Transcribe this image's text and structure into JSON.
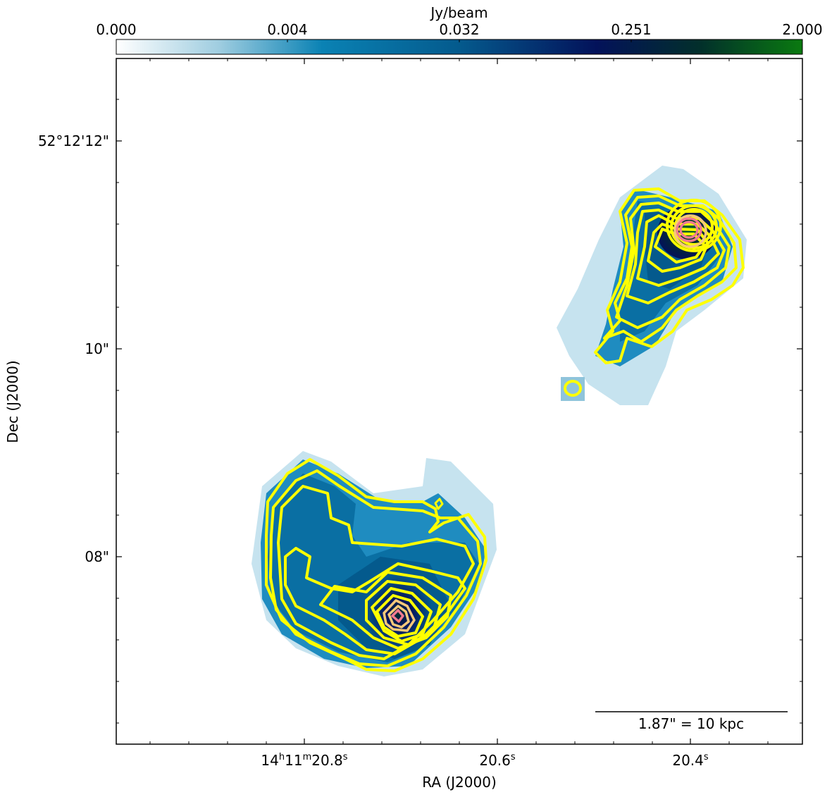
{
  "figure": {
    "colorbar": {
      "label": "Jy/beam",
      "tick_labels": [
        "0.000",
        "0.004",
        "0.032",
        "0.251",
        "2.000"
      ],
      "colormap": [
        "#ffffff",
        "#9fcde0",
        "#0a82b4",
        "#045a8d",
        "#03125a",
        "#022f2b",
        "#0a7a10"
      ]
    },
    "axes": {
      "xlabel": "RA (J2000)",
      "ylabel": "Dec (J2000)",
      "x_ticks": [
        {
          "main": "14",
          "h": "h",
          "m_val": "11",
          "m": "m",
          "s_val": "20.8",
          "s": "s"
        },
        {
          "main": "",
          "h": "",
          "m_val": "",
          "m": "",
          "s_val": "20.6",
          "s": "s"
        },
        {
          "main": "",
          "h": "",
          "m_val": "",
          "m": "",
          "s_val": "20.4",
          "s": "s"
        }
      ],
      "y_ticks": [
        "52°12'12\"",
        "10\"",
        "08\""
      ]
    },
    "scalebar": {
      "label": "1.87\" = 10 kpc"
    },
    "contour_colors": {
      "outer": "#ffff00",
      "mid": "#f6c87a",
      "inner": "#f07a90"
    }
  }
}
